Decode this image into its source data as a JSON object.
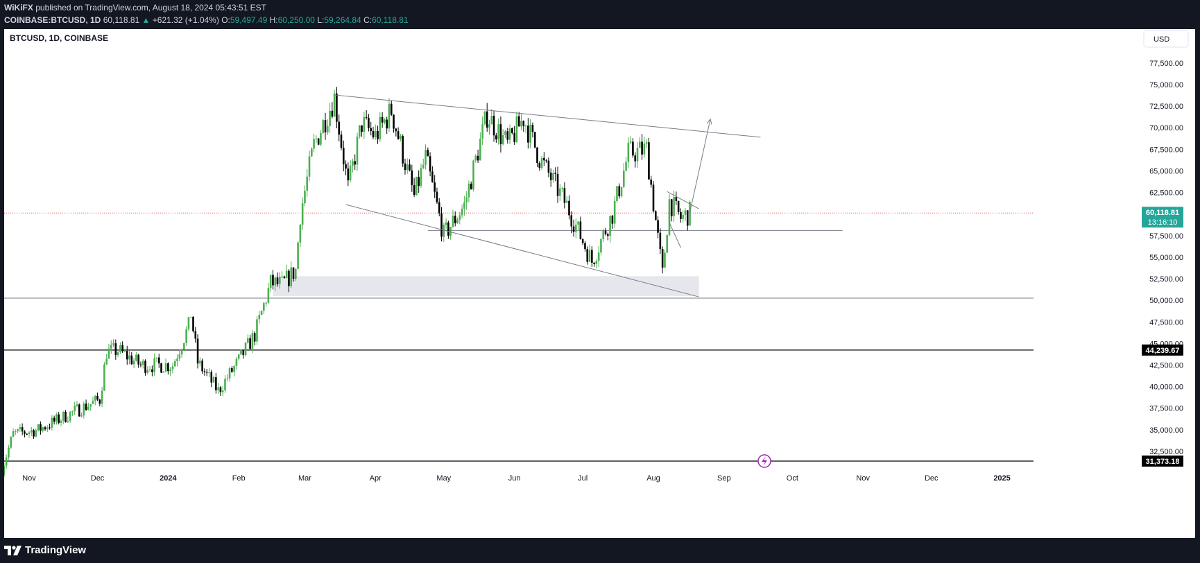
{
  "header": {
    "publisher": "WiKiFX",
    "published_text": "published on TradingView.com, August 18, 2024 05:43:51 EST",
    "symbol": "COINBASE:BTCUSD, 1D",
    "last": "60,118.81",
    "change_arrow": "▲",
    "change": "+621.32 (+1.04%)",
    "o_label": "O:",
    "o_value": "59,497.49",
    "h_label": "H:",
    "h_value": "60,250.00",
    "l_label": "L:",
    "l_value": "59,264.84",
    "c_label": "C:",
    "c_value": "60,118.81"
  },
  "chart_title": "BTCUSD, 1D, COINBASE",
  "currency_button": "USD",
  "footer": {
    "brand": "TradingView"
  },
  "colors": {
    "up": "#26a69a",
    "up_fill": "#4caf50",
    "down": "#000000",
    "price_tag": "#26a69a",
    "level_tag": "#000000"
  },
  "chart_data": {
    "type": "candlestick",
    "title": "BTCUSD, 1D, COINBASE",
    "ylim": [
      29600,
      80000
    ],
    "y_ticks": [
      32500,
      35000,
      37500,
      40000,
      42500,
      45000,
      47500,
      50000,
      52500,
      55000,
      57500,
      60000,
      62500,
      65000,
      67500,
      70000,
      72500,
      75000,
      77500
    ],
    "y_tick_labels": [
      "32,500.00",
      "35,000.00",
      "37,500.00",
      "40,000.00",
      "42,500.00",
      "45,000.00",
      "47,500.00",
      "50,000.00",
      "52,500.00",
      "55,000.00",
      "57,500.00",
      "60,000.00",
      "62,500.00",
      "65,000.00",
      "67,500.00",
      "70,000.00",
      "72,500.00",
      "75,000.00",
      "77,500.00"
    ],
    "x_ticks": [
      {
        "date": "2023-11-01",
        "label": "Nov"
      },
      {
        "date": "2023-12-01",
        "label": "Dec"
      },
      {
        "date": "2024-01-01",
        "label": "2024"
      },
      {
        "date": "2024-02-01",
        "label": "Feb"
      },
      {
        "date": "2024-03-01",
        "label": "Mar"
      },
      {
        "date": "2024-04-01",
        "label": "Apr"
      },
      {
        "date": "2024-05-01",
        "label": "May"
      },
      {
        "date": "2024-06-01",
        "label": "Jun"
      },
      {
        "date": "2024-07-01",
        "label": "Jul"
      },
      {
        "date": "2024-08-01",
        "label": "Aug"
      },
      {
        "date": "2024-09-01",
        "label": "Sep"
      },
      {
        "date": "2024-10-01",
        "label": "Oct"
      },
      {
        "date": "2024-11-01",
        "label": "Nov"
      },
      {
        "date": "2024-12-01",
        "label": "Dec"
      },
      {
        "date": "2025-01-01",
        "label": "2025"
      }
    ],
    "price_path": [
      [
        "2023-10-19",
        29600
      ],
      [
        "2023-10-25",
        34500
      ],
      [
        "2023-11-05",
        35000
      ],
      [
        "2023-11-20",
        37000
      ],
      [
        "2023-12-02",
        38500
      ],
      [
        "2023-12-05",
        44000
      ],
      [
        "2023-12-10",
        44200
      ],
      [
        "2023-12-20",
        42500
      ],
      [
        "2024-01-03",
        42500
      ],
      [
        "2024-01-10",
        47000
      ],
      [
        "2024-01-11",
        48500
      ],
      [
        "2024-01-14",
        42800
      ],
      [
        "2024-01-23",
        39500
      ],
      [
        "2024-02-01",
        43000
      ],
      [
        "2024-02-08",
        46000
      ],
      [
        "2024-02-15",
        52000
      ],
      [
        "2024-02-20",
        51800
      ],
      [
        "2024-02-26",
        53500
      ],
      [
        "2024-02-28",
        60000
      ],
      [
        "2024-03-05",
        68000
      ],
      [
        "2024-03-14",
        73500
      ],
      [
        "2024-03-20",
        63000
      ],
      [
        "2024-03-26",
        70500
      ],
      [
        "2024-04-01",
        69000
      ],
      [
        "2024-04-08",
        72000
      ],
      [
        "2024-04-18",
        62000
      ],
      [
        "2024-04-23",
        66500
      ],
      [
        "2024-05-01",
        57500
      ],
      [
        "2024-05-10",
        61000
      ],
      [
        "2024-05-20",
        71500
      ],
      [
        "2024-05-29",
        68000
      ],
      [
        "2024-06-05",
        71100
      ],
      [
        "2024-06-12",
        66500
      ],
      [
        "2024-06-24",
        61000
      ],
      [
        "2024-07-05",
        54500
      ],
      [
        "2024-07-14",
        60000
      ],
      [
        "2024-07-21",
        67000
      ],
      [
        "2024-07-29",
        67500
      ],
      [
        "2024-08-05",
        53000
      ],
      [
        "2024-08-08",
        61500
      ],
      [
        "2024-08-13",
        59500
      ],
      [
        "2024-08-17",
        60118
      ]
    ],
    "current_price": 60118.81,
    "current_price_label": "60,118.81",
    "countdown": "13:16:10",
    "horizontal_levels": [
      {
        "value": 44239.67,
        "label": "44,239.67"
      },
      {
        "value": 31373.18,
        "label": "31,373.18"
      },
      {
        "value": 50250
      },
      {
        "value": 58100,
        "from": "2024-04-24",
        "to": "2024-10-23"
      }
    ],
    "zone": {
      "from": "2024-02-16",
      "to": "2024-08-21",
      "low": 50500,
      "high": 52800
    },
    "trendlines": [
      {
        "from": [
          "2024-03-14",
          73800
        ],
        "to": [
          "2024-09-17",
          68900
        ]
      },
      {
        "from": [
          "2024-03-19",
          61100
        ],
        "to": [
          "2024-08-21",
          50400
        ]
      },
      {
        "from": [
          "2024-08-07",
          62600
        ],
        "to": [
          "2024-08-21",
          60600
        ]
      },
      {
        "from": [
          "2024-08-08",
          59000
        ],
        "to": [
          "2024-08-13",
          56100
        ]
      }
    ],
    "projection": {
      "from": [
        "2024-08-17",
        60200
      ],
      "to": [
        "2024-08-26",
        71000
      ]
    }
  }
}
